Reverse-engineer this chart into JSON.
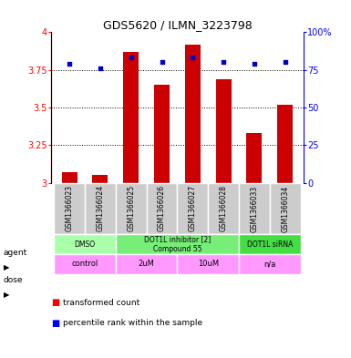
{
  "title": "GDS5620 / ILMN_3223798",
  "samples": [
    "GSM1366023",
    "GSM1366024",
    "GSM1366025",
    "GSM1366026",
    "GSM1366027",
    "GSM1366028",
    "GSM1366033",
    "GSM1366034"
  ],
  "transformed_counts": [
    3.07,
    3.05,
    3.87,
    3.65,
    3.92,
    3.69,
    3.33,
    3.52
  ],
  "percentile_ranks": [
    79,
    76,
    83,
    80,
    83,
    80,
    79,
    80
  ],
  "bar_color": "#cc0000",
  "dot_color": "#0000cc",
  "ylim_left": [
    3.0,
    4.0
  ],
  "ylim_right": [
    0,
    100
  ],
  "yticks_left": [
    3.0,
    3.25,
    3.5,
    3.75,
    4.0
  ],
  "ytick_labels_left": [
    "3",
    "3.25",
    "3.5",
    "3.75",
    "4"
  ],
  "yticks_right": [
    0,
    25,
    50,
    75,
    100
  ],
  "ytick_labels_right": [
    "0",
    "25",
    "50",
    "75",
    "100%"
  ],
  "agent_groups": [
    {
      "label": "DMSO",
      "start": 0,
      "end": 2,
      "color": "#aaffaa"
    },
    {
      "label": "DOT1L inhibitor [2]\nCompound 55",
      "start": 2,
      "end": 6,
      "color": "#77ee77"
    },
    {
      "label": "DOT1L siRNA",
      "start": 6,
      "end": 8,
      "color": "#44dd44"
    }
  ],
  "dose_groups": [
    {
      "label": "control",
      "start": 0,
      "end": 2
    },
    {
      "label": "2uM",
      "start": 2,
      "end": 4
    },
    {
      "label": "10uM",
      "start": 4,
      "end": 6
    },
    {
      "label": "n/a",
      "start": 6,
      "end": 8
    }
  ],
  "dose_color": "#ff99ff",
  "agent_label": "agent",
  "dose_label": "dose",
  "bar_width": 0.5,
  "sample_box_color": "#cccccc",
  "grid_linestyle": "dotted",
  "title_fontsize": 9
}
